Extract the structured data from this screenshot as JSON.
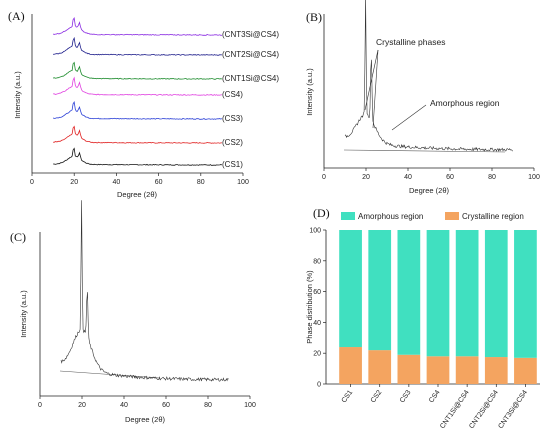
{
  "panels": {
    "A": {
      "letter": "(A)",
      "xlabel": "Degree (2θ)",
      "ylabel": "Intensity (a.u.)",
      "xticks": [
        "0",
        "20",
        "40",
        "60",
        "80",
        "100"
      ]
    },
    "B": {
      "letter": "(B)",
      "xlabel": "Degree (2θ)",
      "ylabel": "Intensity (a.u.)",
      "xticks": [
        "0",
        "20",
        "40",
        "60",
        "80",
        "100"
      ],
      "annotations": [
        "Crystalline phases",
        "Amorphous region"
      ]
    },
    "C": {
      "letter": "(C)",
      "xlabel": "Degree (2θ)",
      "ylabel": "Intensity (a.u.)",
      "xticks": [
        "0",
        "20",
        "40",
        "60",
        "80",
        "100"
      ]
    },
    "D": {
      "letter": "(D)",
      "ylabel": "Phase distribution (%)",
      "yticks": [
        "0",
        "20",
        "40",
        "60",
        "80",
        "100"
      ]
    }
  },
  "chart_data": [
    {
      "type": "line",
      "panel": "A",
      "xlabel": "Degree (2θ)",
      "ylabel": "Intensity (a.u.)",
      "xlim": [
        0,
        100
      ],
      "x_range": [
        10,
        90
      ],
      "peaks_2theta": [
        19.8,
        22.5
      ],
      "series": [
        {
          "name": "(CS1)",
          "color": "#111111"
        },
        {
          "name": "(CS2)",
          "color": "#e02020"
        },
        {
          "name": "(CS3)",
          "color": "#2a3fd6"
        },
        {
          "name": "(CS4)",
          "color": "#e040e0"
        },
        {
          "name": "(CNT1Si@CS4)",
          "color": "#1a8a2a"
        },
        {
          "name": "(CNT2Si@CS4)",
          "color": "#1c1c8a"
        },
        {
          "name": "(CNT3Si@CS4)",
          "color": "#8a2be2"
        }
      ]
    },
    {
      "type": "line",
      "panel": "B",
      "xlabel": "Degree (2θ)",
      "ylabel": "Intensity (a.u.)",
      "xlim": [
        0,
        100
      ],
      "x_range": [
        10,
        90
      ],
      "peaks_2theta": [
        19.8,
        22.5
      ],
      "annotations": [
        "Crystalline phases",
        "Amorphous region"
      ]
    },
    {
      "type": "line",
      "panel": "C",
      "xlabel": "Degree (2θ)",
      "ylabel": "Intensity (a.u.)",
      "xlim": [
        0,
        100
      ],
      "x_range": [
        10,
        90
      ],
      "peaks_2theta": [
        19.8,
        22.5
      ]
    },
    {
      "type": "bar",
      "panel": "D",
      "stacked": true,
      "ylabel": "Phase distribution (%)",
      "ylim": [
        0,
        100
      ],
      "legend_position": "top",
      "categories": [
        "CS1",
        "CS2",
        "CS3",
        "CS4",
        "CNT1Si@CS4",
        "CNT2Si@CS4",
        "CNT3Si@CS4"
      ],
      "series": [
        {
          "name": "Crystalline region",
          "color": "#f4a460",
          "values": [
            24,
            22,
            19,
            18,
            18,
            17.5,
            17
          ]
        },
        {
          "name": "Amorphous region",
          "color": "#40e0c0",
          "values": [
            76,
            78,
            81,
            82,
            82,
            82.5,
            83
          ]
        }
      ]
    }
  ]
}
